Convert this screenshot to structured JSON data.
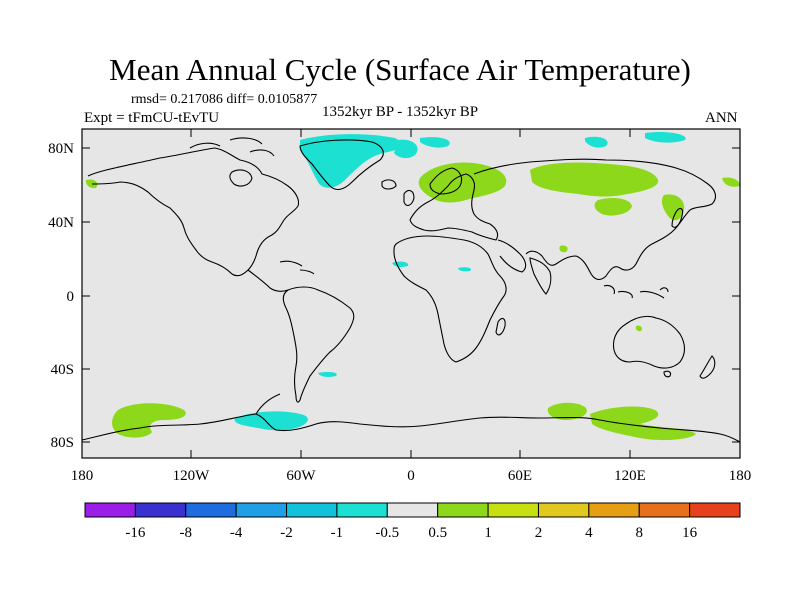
{
  "header": {
    "title": "Mean Annual Cycle (Surface Air Temperature)",
    "stats": "rmsd= 0.217086 diff= 0.0105877",
    "experiment": "Expt = tFmCU-tEvTU",
    "period": "1352kyr BP - 1352kyr BP",
    "season": "ANN"
  },
  "map": {
    "lat_ticks": [
      "80N",
      "40N",
      "0",
      "40S",
      "80S"
    ],
    "lon_ticks": [
      "180",
      "120W",
      "60W",
      "0",
      "60E",
      "120E",
      "180"
    ],
    "ocean_color": "#e6e6e6",
    "coast_color": "#000000"
  },
  "colorbar": {
    "colors": [
      "#9b1ee8",
      "#3a32d0",
      "#1f6be0",
      "#1fa0e6",
      "#12c2dc",
      "#1ce0d2",
      "#e6e6e6",
      "#8ed81c",
      "#c6e012",
      "#e0c81e",
      "#e69e12",
      "#e6701c",
      "#e6401c"
    ],
    "labels": [
      "-16",
      "-8",
      "-4",
      "-2",
      "-1",
      "-0.5",
      "0.5",
      "1",
      "2",
      "4",
      "8",
      "16"
    ]
  },
  "anomalies": {
    "positive_color": "#8ed81c",
    "negative_color": "#1ce0d2"
  }
}
